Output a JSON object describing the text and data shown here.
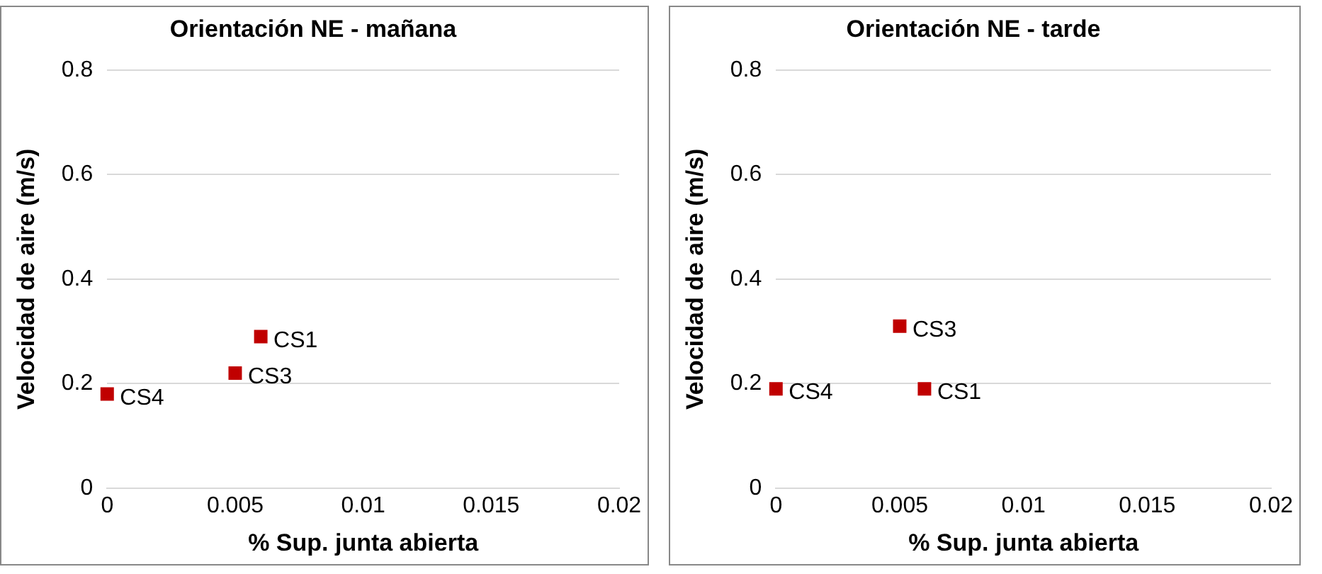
{
  "chart_data": [
    {
      "type": "scatter",
      "title": "Orientación NE - mañana",
      "xlabel": "% Sup. junta abierta",
      "ylabel": "Velocidad de aire (m/s)",
      "x": [
        0.006,
        0.005,
        0
      ],
      "series": [
        {
          "color": "#c00000",
          "values": [
            0.29,
            0.22,
            0.18
          ]
        }
      ],
      "annotations": [
        {
          "text": "CS1",
          "x": 0.006,
          "y": 0.29
        },
        {
          "text": "CS3",
          "x": 0.005,
          "y": 0.22
        },
        {
          "text": "CS4",
          "x": 0,
          "y": 0.18
        }
      ],
      "xlim": [
        0,
        0.02
      ],
      "xticks": [
        0,
        0.005,
        0.01,
        0.015,
        0.02
      ],
      "ylim": [
        0,
        0.8
      ],
      "yticks": [
        0,
        0.2,
        0.4,
        0.6,
        0.8
      ],
      "grid": "y",
      "legend": false,
      "marker": "square"
    },
    {
      "type": "scatter",
      "title": "Orientación NE - tarde",
      "xlabel": "% Sup. junta abierta",
      "ylabel": "Velocidad de aire (m/s)",
      "x": [
        0.006,
        0.005,
        0
      ],
      "series": [
        {
          "color": "#c00000",
          "values": [
            0.19,
            0.31,
            0.19
          ]
        }
      ],
      "annotations": [
        {
          "text": "CS1",
          "x": 0.006,
          "y": 0.19
        },
        {
          "text": "CS3",
          "x": 0.005,
          "y": 0.31
        },
        {
          "text": "CS4",
          "x": 0,
          "y": 0.19
        }
      ],
      "xlim": [
        0,
        0.02
      ],
      "xticks": [
        0,
        0.005,
        0.01,
        0.015,
        0.02
      ],
      "ylim": [
        0,
        0.8
      ],
      "yticks": [
        0,
        0.2,
        0.4,
        0.6,
        0.8
      ],
      "grid": "y",
      "legend": false,
      "marker": "square"
    }
  ]
}
